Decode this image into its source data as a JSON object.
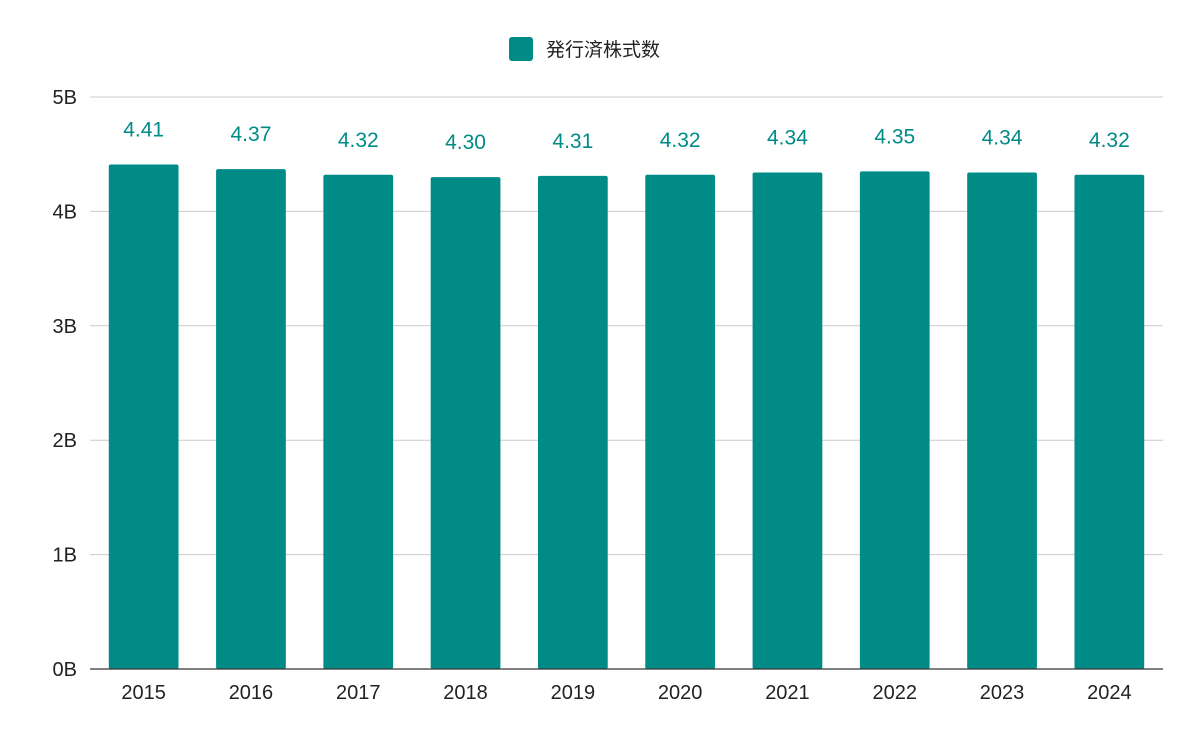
{
  "chart_data": {
    "type": "bar",
    "title": "",
    "xlabel": "",
    "ylabel": "",
    "categories": [
      "2015",
      "2016",
      "2017",
      "2018",
      "2019",
      "2020",
      "2021",
      "2022",
      "2023",
      "2024"
    ],
    "series": [
      {
        "name": "発行済株式数",
        "values": [
          4.41,
          4.37,
          4.32,
          4.3,
          4.31,
          4.32,
          4.34,
          4.35,
          4.34,
          4.32
        ],
        "data_labels": [
          "4.41",
          "4.37",
          "4.32",
          "4.30",
          "4.31",
          "4.32",
          "4.34",
          "4.35",
          "4.34",
          "4.32"
        ]
      }
    ],
    "ylim": [
      0,
      5
    ],
    "yticks": [
      0,
      1,
      2,
      3,
      4,
      5
    ],
    "ytick_labels": [
      "0B",
      "1B",
      "2B",
      "3B",
      "4B",
      "5B"
    ],
    "grid": true,
    "legend_position": "top-center",
    "colors": {
      "bar": "#008b87",
      "data_label": "#008b87",
      "grid": "#cccccc",
      "axis": "#333333"
    }
  }
}
